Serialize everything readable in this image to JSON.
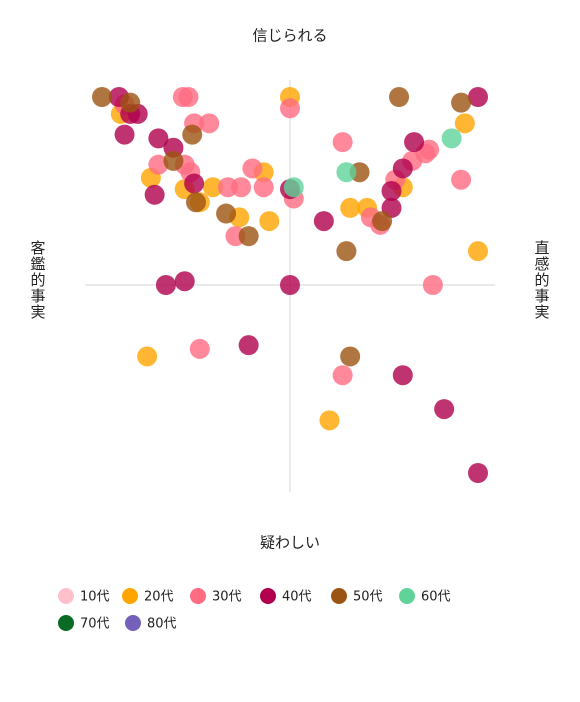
{
  "chart_data": {
    "type": "scatter",
    "label_top": "信じられる",
    "label_bottom": "疑わしい",
    "label_left": "客鑑的事実",
    "label_right": "直感的事実",
    "xlim": [
      -1,
      1
    ],
    "ylim": [
      -1,
      1
    ],
    "series": [
      {
        "name": "10代",
        "color": "#ffc0cb",
        "x": [],
        "values": []
      },
      {
        "name": "20代",
        "color": "#ffa500",
        "x": [
          0,
          -0.9,
          -0.74,
          -0.56,
          -0.41,
          -0.48,
          -0.27,
          -0.14,
          -0.11,
          0.32,
          0.41,
          0.6,
          0.93,
          1.0,
          -0.76,
          0.21
        ],
        "values": [
          1.0,
          0.91,
          0.57,
          0.51,
          0.52,
          0.44,
          0.36,
          0.6,
          0.34,
          0.41,
          0.41,
          0.52,
          0.86,
          0.18,
          -0.38,
          -0.72
        ]
      },
      {
        "name": "30代",
        "color": "#ff6b81",
        "x": [
          -0.57,
          -0.54,
          -0.88,
          -0.51,
          -0.43,
          -0.7,
          -0.56,
          -0.53,
          -0.33,
          -0.26,
          -0.2,
          -0.14,
          -0.29,
          0,
          0.02,
          0.28,
          0.43,
          0.48,
          0.56,
          0.65,
          0.72,
          0.74,
          0.91,
          0.76,
          -0.48,
          0.28
        ],
        "values": [
          1.0,
          1.0,
          0.96,
          0.86,
          0.86,
          0.64,
          0.64,
          0.6,
          0.52,
          0.52,
          0.62,
          0.52,
          0.26,
          0.94,
          0.46,
          0.76,
          0.36,
          0.32,
          0.56,
          0.66,
          0.7,
          0.72,
          0.56,
          0,
          -0.34,
          -0.48
        ]
      },
      {
        "name": "40代",
        "color": "#b0004e",
        "x": [
          -0.91,
          -0.85,
          -0.81,
          -0.88,
          -0.7,
          -0.62,
          -0.51,
          -0.72,
          0,
          0.18,
          0.54,
          0.54,
          0.6,
          0.66,
          1.0,
          0,
          -0.66,
          -0.56,
          -0.22,
          0.6,
          0.82,
          1.0
        ],
        "values": [
          1.0,
          0.91,
          0.91,
          0.8,
          0.78,
          0.73,
          0.54,
          0.48,
          0.51,
          0.34,
          0.41,
          0.5,
          0.62,
          0.76,
          1.0,
          0,
          0,
          0.02,
          -0.32,
          -0.48,
          -0.66,
          -1.0
        ]
      },
      {
        "name": "50代",
        "color": "#9c5412",
        "x": [
          -1.0,
          -0.85,
          -0.52,
          -0.62,
          -0.5,
          -0.34,
          -0.22,
          0.37,
          0.49,
          0.3,
          0.58,
          0.91,
          0.32
        ],
        "values": [
          1.0,
          0.97,
          0.8,
          0.66,
          0.44,
          0.38,
          0.26,
          0.6,
          0.34,
          0.18,
          1.0,
          0.97,
          -0.38
        ]
      },
      {
        "name": "60代",
        "color": "#5fd39a",
        "x": [
          0.02,
          0.3,
          0.86
        ],
        "values": [
          0.52,
          0.6,
          0.78
        ]
      },
      {
        "name": "70代",
        "color": "#0a6b25",
        "x": [],
        "values": []
      },
      {
        "name": "80代",
        "color": "#7460b8",
        "x": [],
        "values": []
      }
    ]
  }
}
